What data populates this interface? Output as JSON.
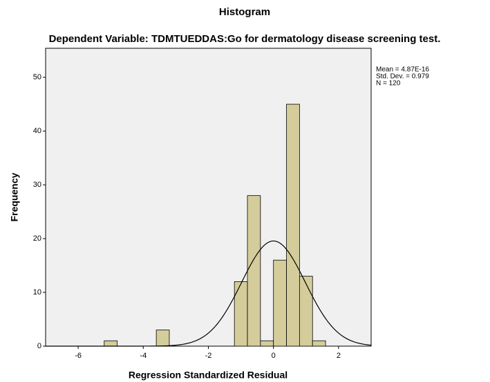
{
  "chart_data": {
    "type": "histogram",
    "title": "Histogram",
    "subtitle": "Dependent Variable: TDMTUEDDAS:Go for dermatology disease screening test.",
    "x_label": "Regression Standardized Residual",
    "y_label": "Frequency",
    "bins": [
      -5.2,
      -4.8,
      -4.4,
      -4.0,
      -3.6,
      -3.2,
      -2.8,
      -2.4,
      -2.0,
      -1.6,
      -1.2,
      -0.8,
      -0.4,
      0,
      0.4,
      0.8,
      1.2,
      1.6
    ],
    "values": [
      1,
      0,
      0,
      0,
      3,
      0,
      0,
      0,
      0,
      0,
      12,
      28,
      1,
      16,
      45,
      13,
      1
    ],
    "color": "#d4cd9b",
    "xlim": [
      -7,
      3
    ],
    "xticks": [
      -6,
      -4,
      -2,
      0,
      2
    ],
    "ylim": [
      0,
      55.4
    ],
    "yticks": [
      0,
      10,
      20,
      30,
      40,
      50
    ],
    "stats": [
      {
        "value": 4.87e-16,
        "label": "Mean = 4.87E-16"
      },
      {
        "value": 0.979,
        "label": "Std. Dev. = 0.979"
      },
      {
        "value": 120,
        "label": "N = 120"
      }
    ]
  }
}
